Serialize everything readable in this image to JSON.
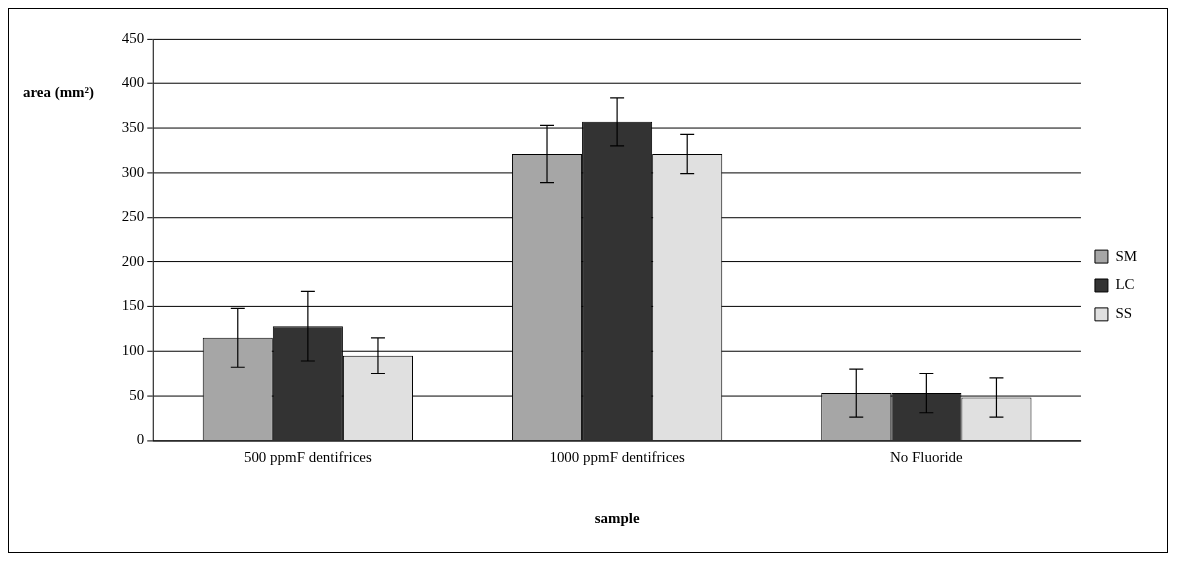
{
  "chart_data": {
    "type": "bar",
    "xlabel": "sample",
    "ylabel": "area (mm²)",
    "categories": [
      "500 ppmF dentifrices",
      "1000 ppmF dentifrices",
      "No Fluoride"
    ],
    "series": [
      {
        "name": "SM",
        "color": "#a6a6a6",
        "values": [
          115,
          321,
          53
        ],
        "errors": [
          33,
          32,
          27
        ]
      },
      {
        "name": "LC",
        "color": "#333333",
        "values": [
          128,
          357,
          53
        ],
        "errors": [
          39,
          27,
          22
        ]
      },
      {
        "name": "SS",
        "color": "#e0e0e0",
        "values": [
          95,
          321,
          48
        ],
        "errors": [
          20,
          22,
          22
        ]
      }
    ],
    "ylim": [
      0,
      450
    ],
    "yticks": [
      0,
      50,
      100,
      150,
      200,
      250,
      300,
      350,
      400,
      450
    ],
    "grid": "y",
    "legend": "right"
  }
}
